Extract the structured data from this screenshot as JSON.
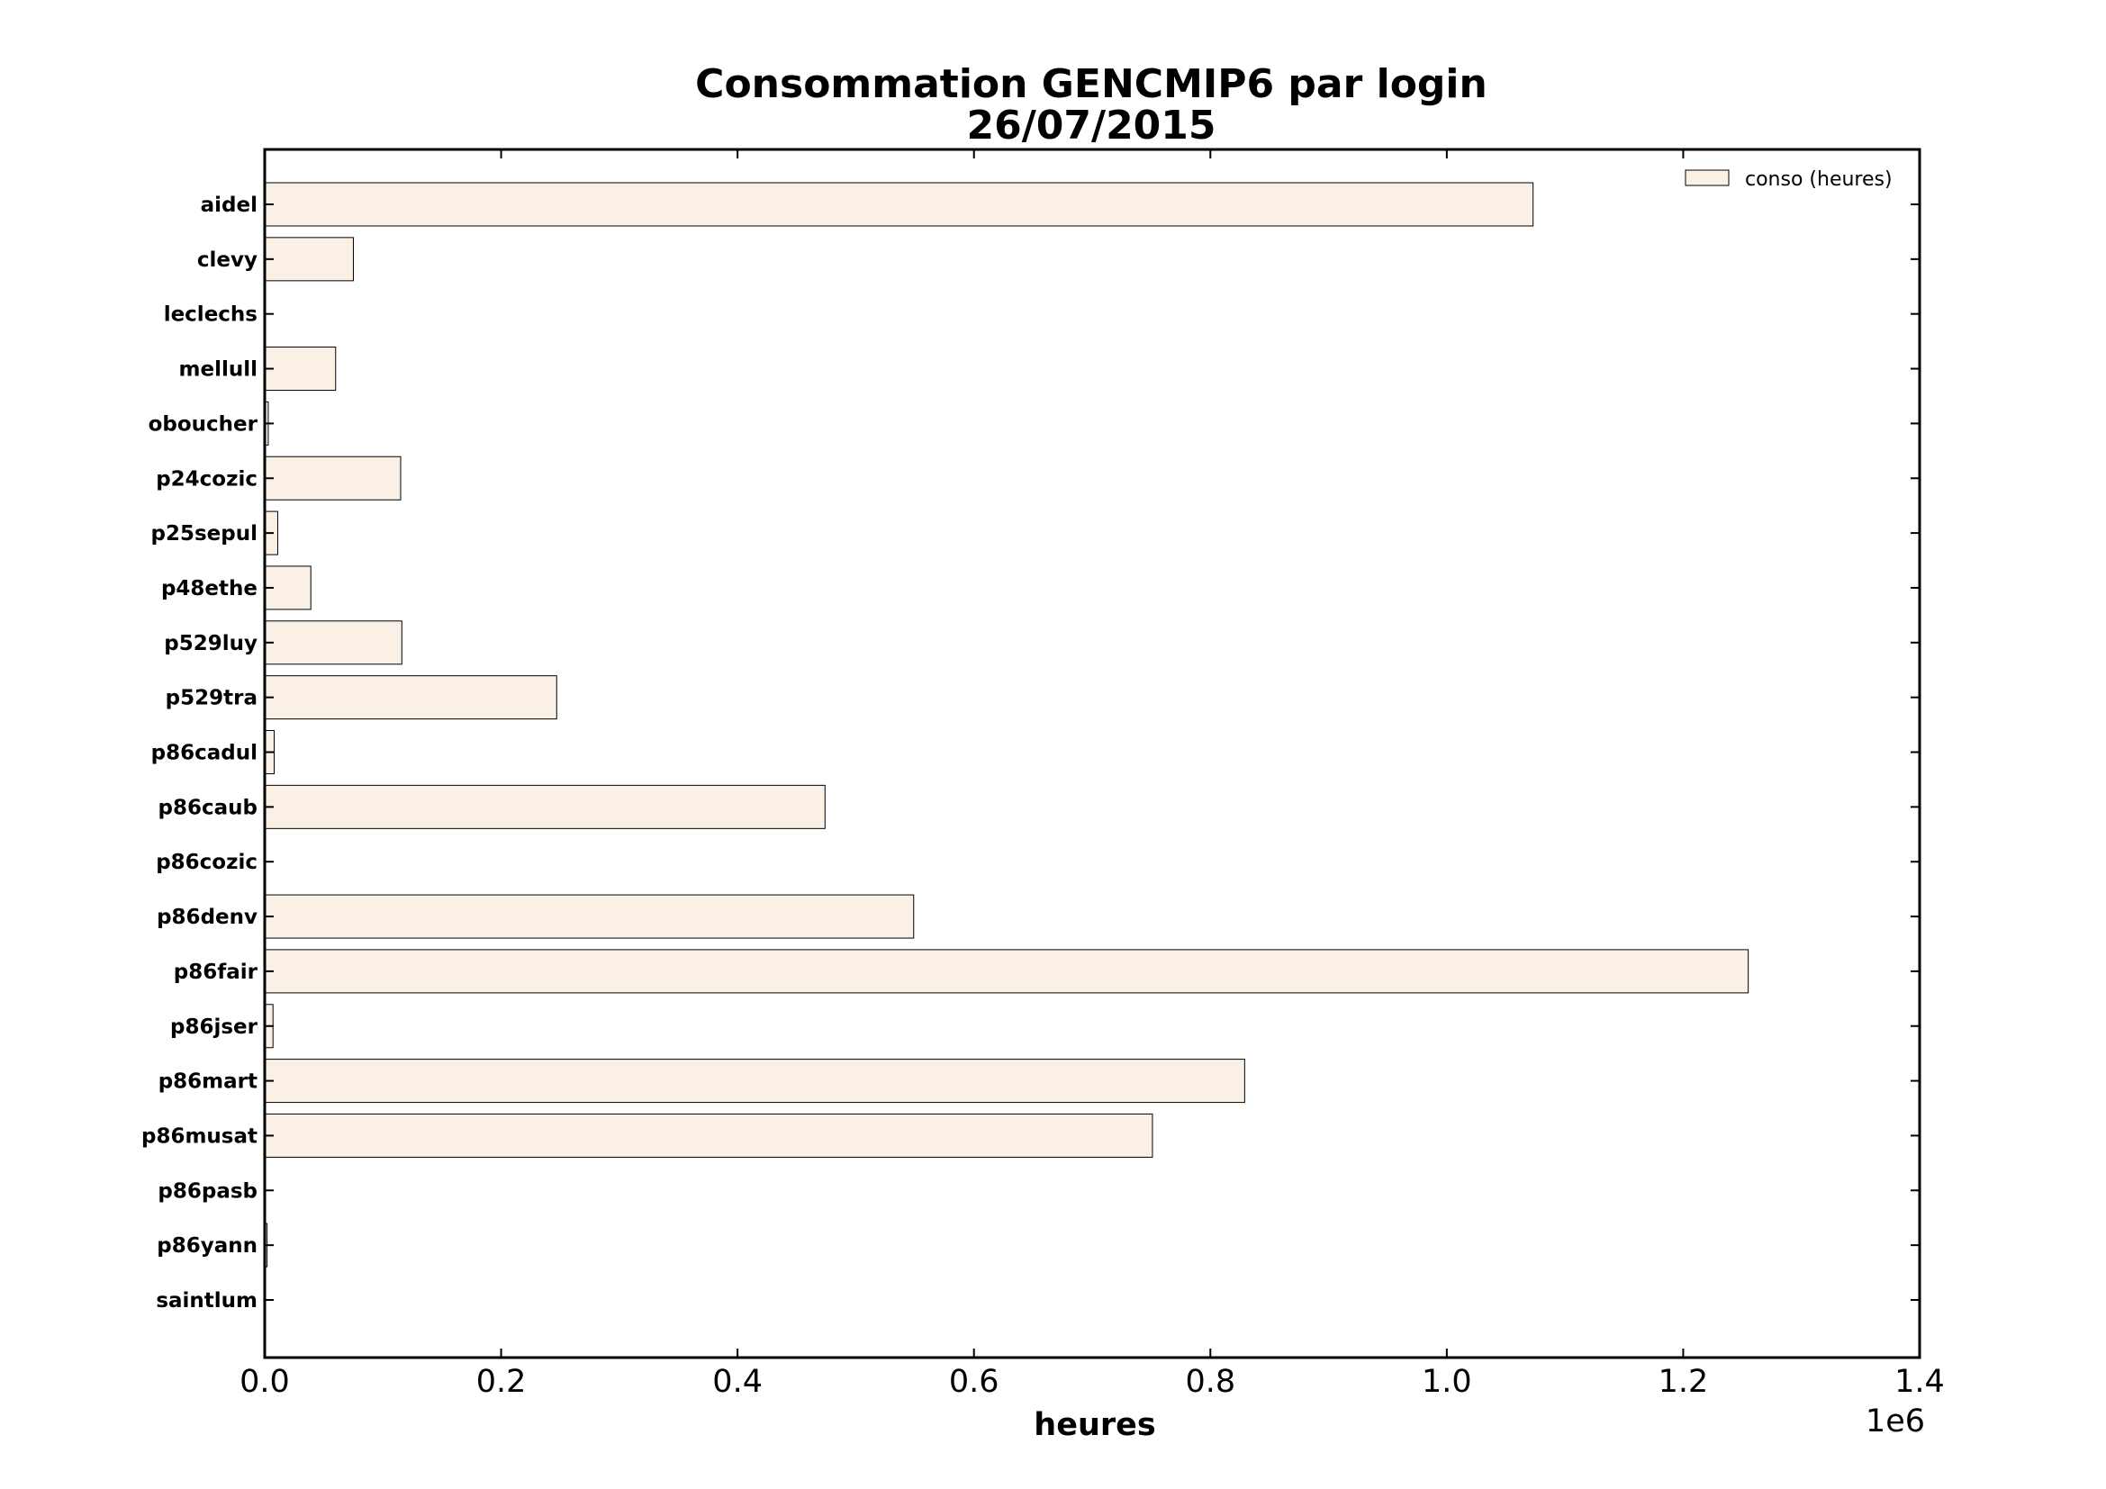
{
  "chart_data": {
    "type": "bar",
    "orientation": "horizontal",
    "title": "Consommation GENCMIP6 par login",
    "subtitle": "26/07/2015",
    "xlabel": "heures",
    "ylabel": "",
    "x_offset_label": "1e6",
    "xlim": [
      0,
      1.4
    ],
    "x_ticks": [
      "0.0",
      "0.2",
      "0.4",
      "0.6",
      "0.8",
      "1.0",
      "1.2",
      "1.4"
    ],
    "legend_position": "top-right",
    "grid": false,
    "bar_color": "#faf0e6",
    "categories": [
      "aidel",
      "clevy",
      "leclechs",
      "mellull",
      "oboucher",
      "p24cozic",
      "p25sepul",
      "p48ethe",
      "p529luy",
      "p529tra",
      "p86cadul",
      "p86caub",
      "p86cozic",
      "p86denv",
      "p86fair",
      "p86jser",
      "p86mart",
      "p86musat",
      "p86pasb",
      "p86yann",
      "saintlum"
    ],
    "series": [
      {
        "name": "conso (heures)",
        "values": [
          1.073,
          0.075,
          0.0,
          0.06,
          0.003,
          0.115,
          0.011,
          0.039,
          0.116,
          0.247,
          0.008,
          0.474,
          0.0,
          0.549,
          1.255,
          0.007,
          0.829,
          0.751,
          0.0,
          0.002,
          0.0
        ]
      }
    ]
  }
}
